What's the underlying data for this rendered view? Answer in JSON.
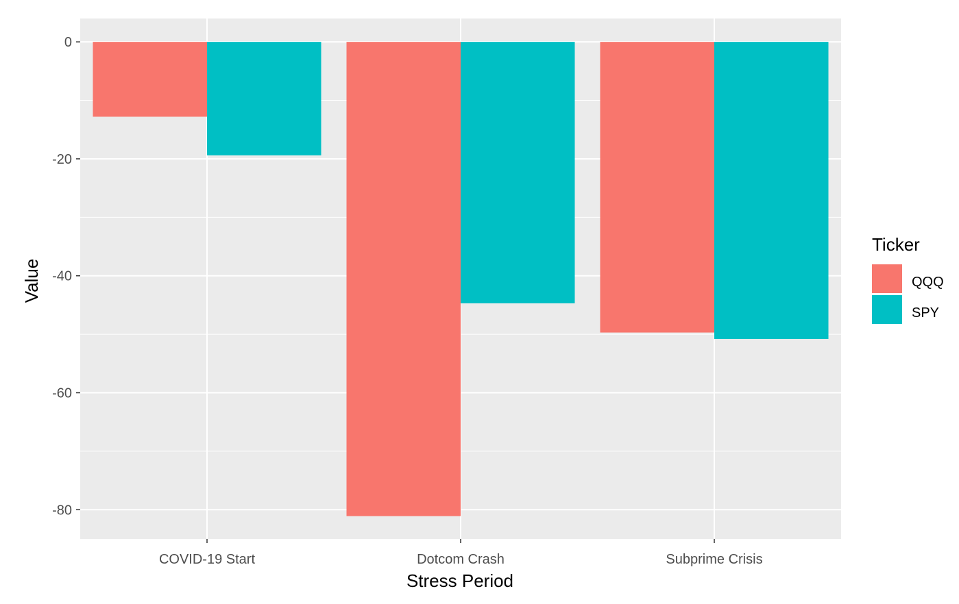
{
  "chart_data": {
    "type": "bar",
    "title": "",
    "xlabel": "Stress Period",
    "ylabel": "Value",
    "categories": [
      "COVID-19 Start",
      "Dotcom Crash",
      "Subprime Crisis"
    ],
    "series": [
      {
        "name": "QQQ",
        "values": [
          -12.8,
          -81.1,
          -49.7
        ],
        "color": "#F8766D"
      },
      {
        "name": "SPY",
        "values": [
          -19.4,
          -44.7,
          -50.8
        ],
        "color": "#00BFC4"
      }
    ],
    "ylim": [
      -85,
      4
    ],
    "yticks": [
      0,
      -20,
      -40,
      -60,
      -80
    ],
    "ytick_labels": [
      "0",
      "-20",
      "-40",
      "-60",
      "-80"
    ],
    "grid": true,
    "legend": {
      "title": "Ticker",
      "placement": "right"
    },
    "panel_background": "#EBEBEB",
    "grid_color": "#FFFFFF"
  }
}
